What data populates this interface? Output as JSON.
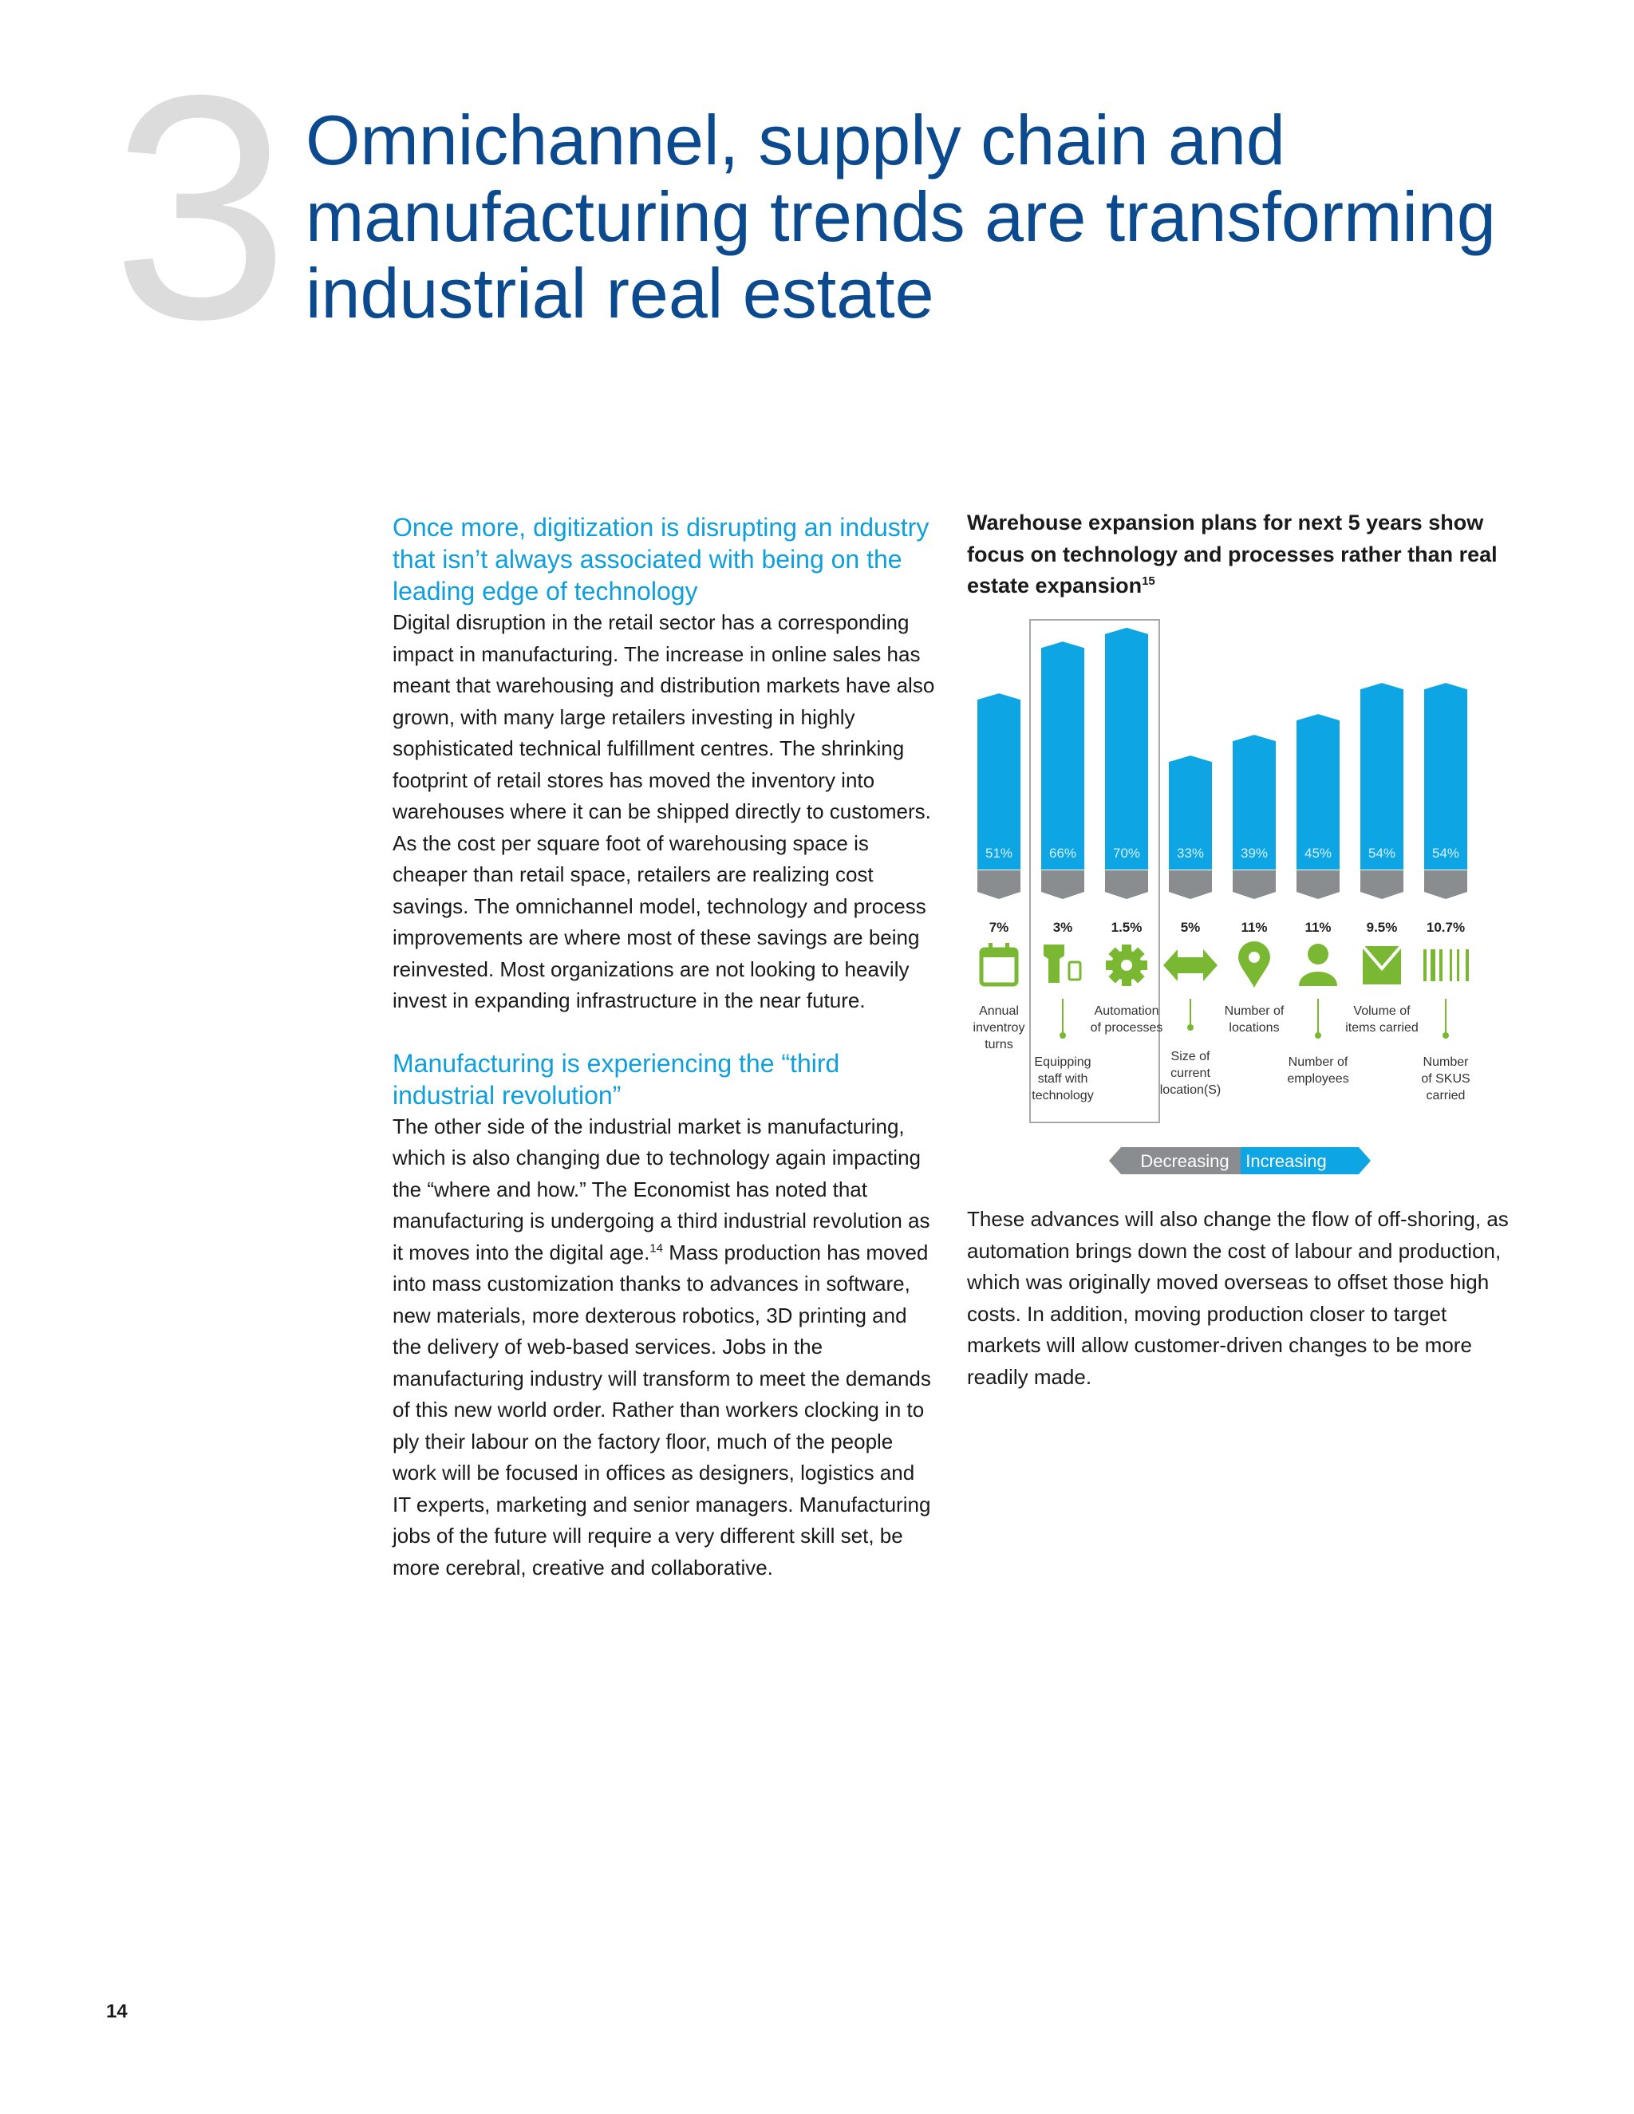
{
  "section_number": "3",
  "title": "Omnichannel, supply chain and manufacturing trends are transforming industrial real estate",
  "left_column": {
    "heading1": "Once more, digitization is disrupting an industry that isn’t always associated with being on the leading edge of technology",
    "para1": "Digital disruption in the retail sector has a corresponding impact in manufacturing. The increase in online sales has meant that warehousing and distribution markets have also grown, with many large retailers investing in highly sophisticated technical fulfillment centres. The shrinking footprint of retail stores has moved the inventory into warehouses where it can be shipped directly to customers. As the cost per square foot of warehousing space is cheaper than retail space, retailers are realizing cost savings. The omnichannel model, technology and process improvements are where most of these savings are being reinvested. Most organizations are not looking to heavily invest in expanding infrastructure in the near future.",
    "heading2": "Manufacturing is experiencing the “third industrial revolution”",
    "para2a": "The other side of the industrial market is manufacturing, which is also changing due to technology again impacting the “where and how.” The Economist has noted that manufacturing is undergoing a third industrial revolution as it moves into the digital age.",
    "para2_footnote": "14",
    "para2b": " Mass production has moved into mass customization thanks to advances in software, new materials, more dexterous robotics, 3D printing and the delivery of web-based services. Jobs in the manufacturing industry will transform to meet the demands of this new world order. Rather than workers clocking in to ply their labour on the factory floor, much of the people work will be focused in offices as designers, logistics and IT experts, marketing and senior managers. Manufacturing jobs of the future will require a very different skill set, be more cerebral, creative and collaborative."
  },
  "right_column": {
    "para": "These advances will also change the flow of off-shoring, as automation brings down the cost of labour and production, which was originally moved overseas to offset those high costs. In addition, moving production closer to target markets will allow customer-driven changes to be more readily made."
  },
  "chart_title": "Warehouse expansion plans for next 5 years show focus on technology and processes rather than real estate expansion",
  "chart_title_footnote": "15",
  "chart_data": {
    "type": "bar",
    "categories": [
      "Annual inventroy turns",
      "Equipping staff with technology",
      "Automation of processes",
      "Size of current location(S)",
      "Number of locations",
      "Number of employees",
      "Volume of items carried",
      "Number of SKUS carried"
    ],
    "label_lines": [
      [
        "Annual",
        "inventroy",
        "turns"
      ],
      [
        "Equipping",
        "staff with",
        "technology"
      ],
      [
        "Automation",
        "of processes"
      ],
      [
        "Size of",
        "current",
        "location(S)"
      ],
      [
        "Number of",
        "locations"
      ],
      [
        "Number of",
        "employees"
      ],
      [
        "Volume of",
        "items carried"
      ],
      [
        "Number",
        "of SKUS",
        "carried"
      ]
    ],
    "icons": [
      "calendar-icon",
      "scanner-phone-icon",
      "gear-icon",
      "double-arrow-icon",
      "location-pin-icon",
      "person-icon",
      "box-icon",
      "barcode-icon"
    ],
    "highlighted": [
      1,
      2
    ],
    "series": [
      {
        "name": "Increasing",
        "values": [
          51,
          66,
          70,
          33,
          39,
          45,
          54,
          54
        ],
        "labels": [
          "51%",
          "66%",
          "70%",
          "33%",
          "39%",
          "45%",
          "54%",
          "54%"
        ],
        "color": "#0ea5e4"
      },
      {
        "name": "Decreasing",
        "values": [
          7,
          3,
          1.5,
          5,
          11,
          11,
          9.5,
          10.7
        ],
        "labels": [
          "7%",
          "3%",
          "1.5%",
          "5%",
          "11%",
          "11%",
          "9.5%",
          "10.7%"
        ],
        "color": "#8a8d90"
      }
    ],
    "legend": {
      "decreasing": "Decreasing",
      "increasing": "Increasing",
      "position": "bottom"
    },
    "icon_color": "#7ab833"
  },
  "page_number": "14"
}
